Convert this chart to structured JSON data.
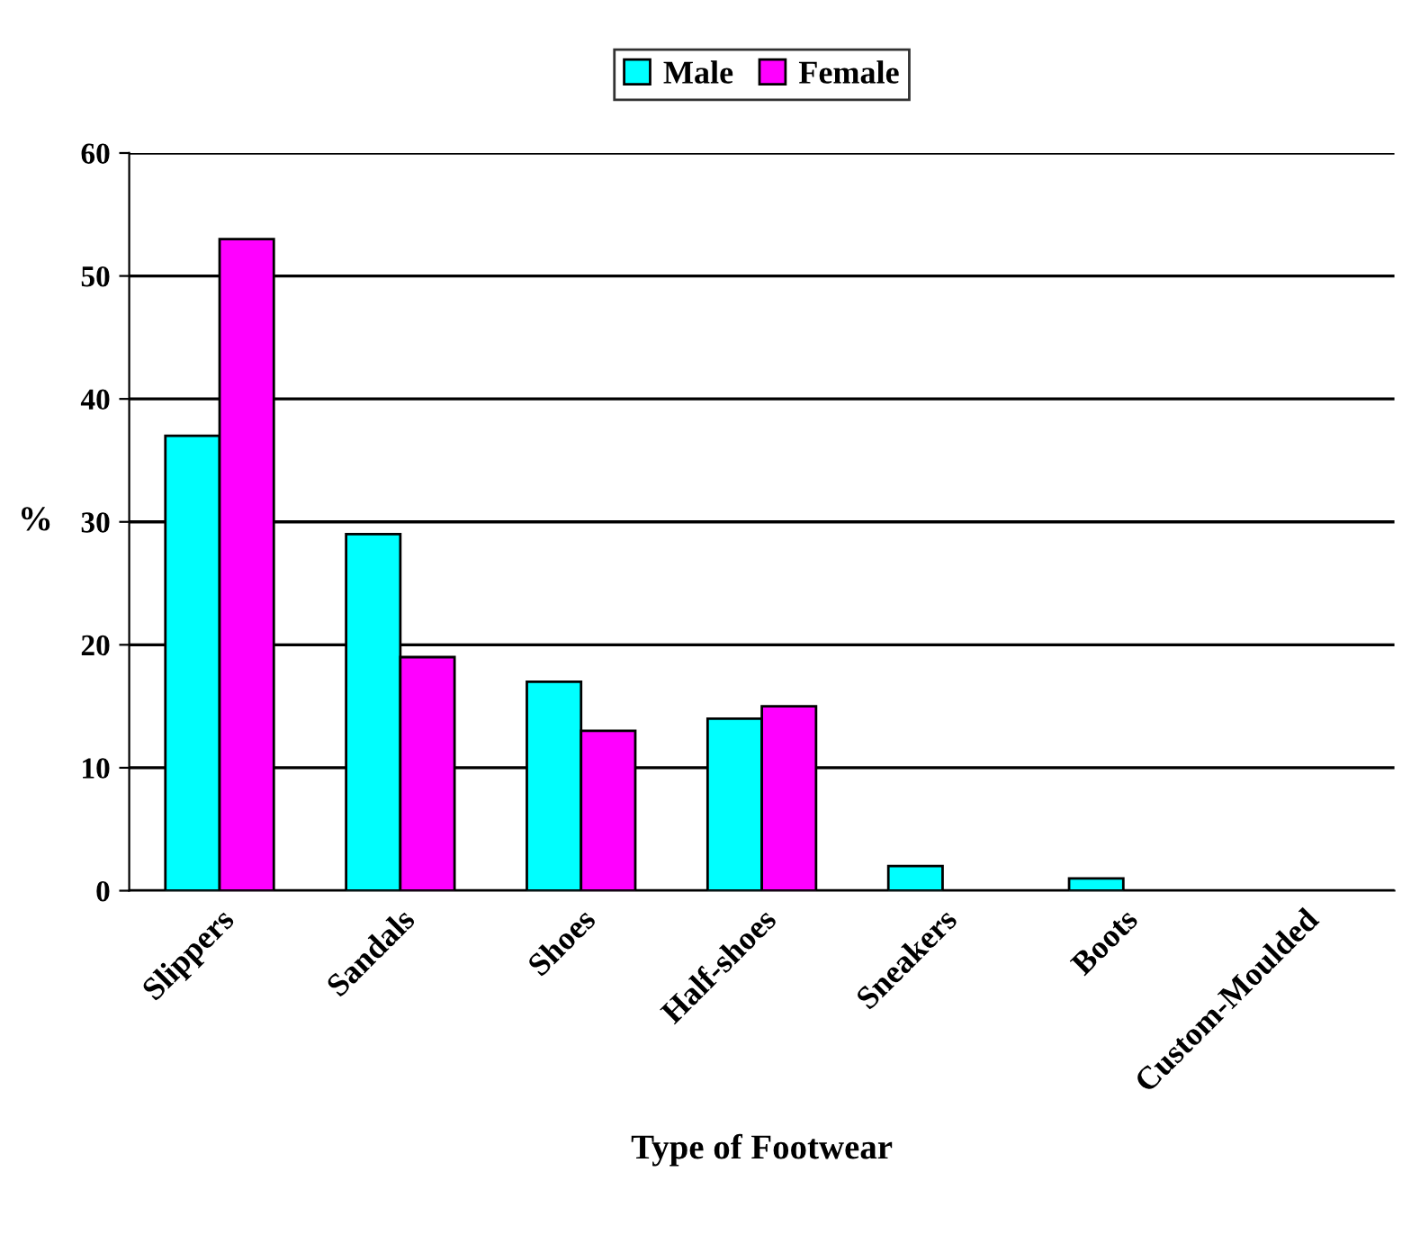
{
  "chart_data": {
    "type": "bar",
    "xlabel": "Type of Footwear",
    "ylabel": "%",
    "categories": [
      "Slippers",
      "Sandals",
      "Shoes",
      "Half-shoes",
      "Sneakers",
      "Boots",
      "Custom-Moulded"
    ],
    "series": [
      {
        "name": "Male",
        "color": "#00ffff",
        "values": [
          37,
          29,
          17,
          14,
          2,
          1,
          null
        ]
      },
      {
        "name": "Female",
        "color": "#ff00ff",
        "values": [
          53,
          19,
          13,
          15,
          null,
          null,
          null
        ]
      }
    ],
    "ylim": [
      0,
      60
    ],
    "yticks": [
      0,
      10,
      20,
      30,
      40,
      50,
      60
    ],
    "grid": "y",
    "legend": "top"
  }
}
